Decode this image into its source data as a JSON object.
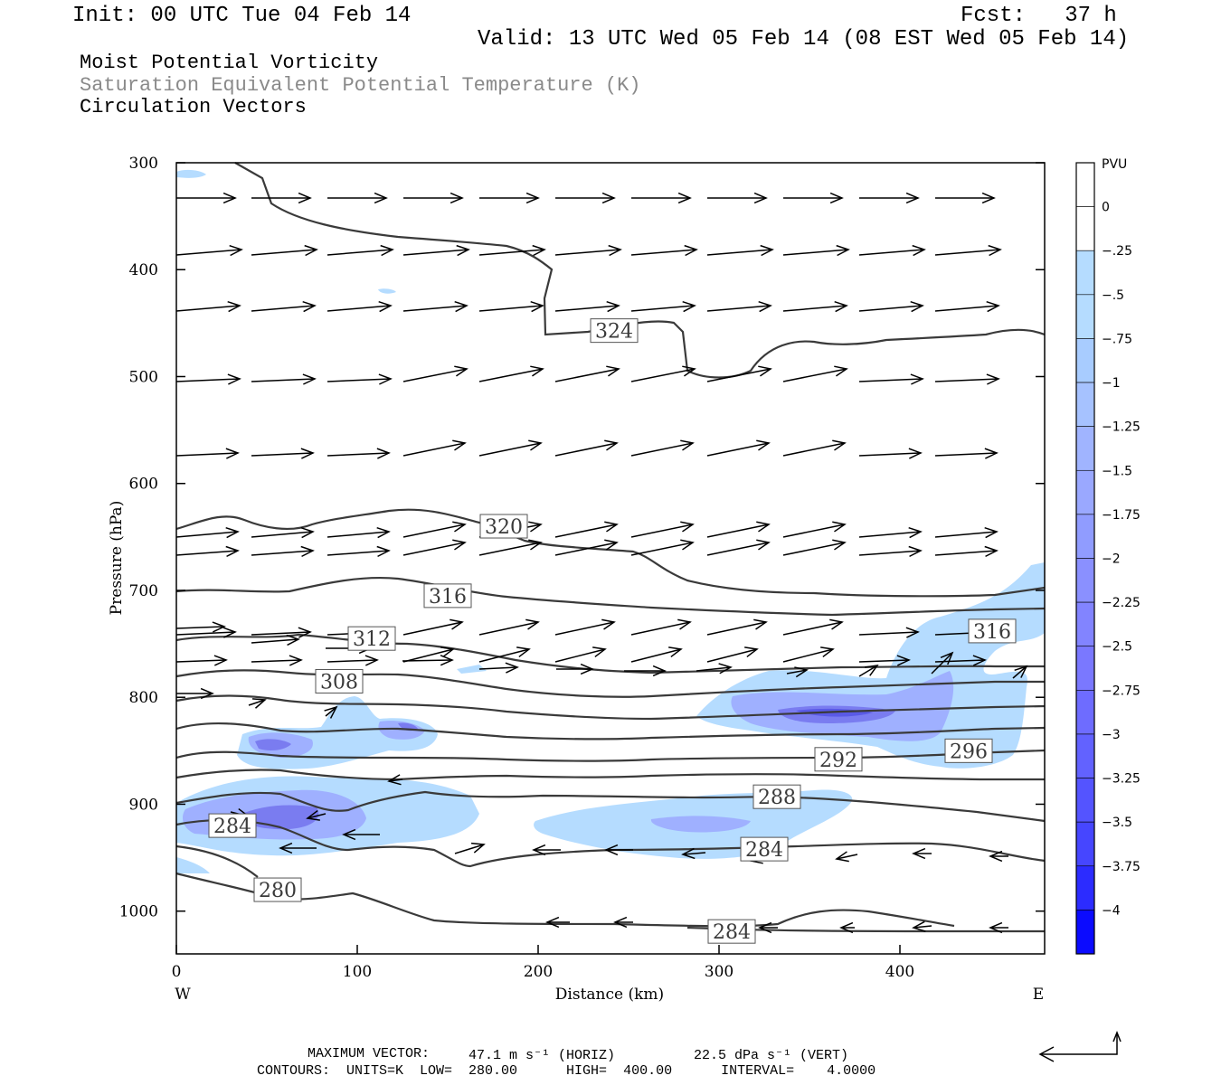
{
  "header": {
    "init": "Init: 00 UTC Tue 04 Feb 14",
    "fcst": "Fcst:   37 h",
    "valid": "Valid: 13 UTC Wed 05 Feb 14 (08 EST Wed 05 Feb 14)",
    "field1": "Moist Potential Vorticity",
    "field2": "Saturation Equivalent Potential Temperature (K)",
    "field3": "Circulation Vectors"
  },
  "footer": {
    "max_vector_label": "MAXIMUM VECTOR:",
    "max_vector_horiz": "47.1 m s⁻¹ (HORIZ)",
    "max_vector_vert": "22.5 dPa s⁻¹ (VERT)",
    "contours": "CONTOURS:  UNITS=K  LOW=  280.00      HIGH=  400.00      INTERVAL=    4.0000"
  },
  "colors": {
    "contour": "#3a3a3a",
    "pvu_light": "#b5dcff",
    "pvu_mid": "#9fb0ff",
    "pvu_dark": "#7a7cf0"
  },
  "chart_data": {
    "type": "cross-section",
    "xlabel": "Distance (km)",
    "ylabel": "Pressure (hPa)",
    "x_ticks": [
      0,
      100,
      200,
      300,
      400
    ],
    "y_ticks": [
      300,
      400,
      500,
      600,
      700,
      800,
      900,
      1000
    ],
    "xlim": [
      0,
      480
    ],
    "ylim": [
      300,
      1040
    ],
    "x_end_labels": {
      "left": "W",
      "right": "E"
    },
    "contour_labels": [
      {
        "text": "324",
        "x": 242,
        "p": 457
      },
      {
        "text": "320",
        "x": 181,
        "p": 640
      },
      {
        "text": "316",
        "x": 150,
        "p": 705
      },
      {
        "text": "312",
        "x": 108,
        "p": 745
      },
      {
        "text": "308",
        "x": 90,
        "p": 785
      },
      {
        "text": "316",
        "x": 451,
        "p": 738
      },
      {
        "text": "296",
        "x": 438,
        "p": 850
      },
      {
        "text": "292",
        "x": 366,
        "p": 858
      },
      {
        "text": "288",
        "x": 332,
        "p": 893
      },
      {
        "text": "284",
        "x": 31,
        "p": 920
      },
      {
        "text": "284",
        "x": 325,
        "p": 942
      },
      {
        "text": "280",
        "x": 56,
        "p": 980
      },
      {
        "text": "284",
        "x": 307,
        "p": 1019
      }
    ],
    "colorbar": {
      "title": "PVU",
      "labels": [
        "0",
        "−.25",
        "−.5",
        "−.75",
        "−1",
        "−1.25",
        "−1.5",
        "−1.75",
        "−2",
        "−2.25",
        "−2.5",
        "−2.75",
        "−3",
        "−3.25",
        "−3.5",
        "−3.75",
        "−4"
      ]
    }
  }
}
